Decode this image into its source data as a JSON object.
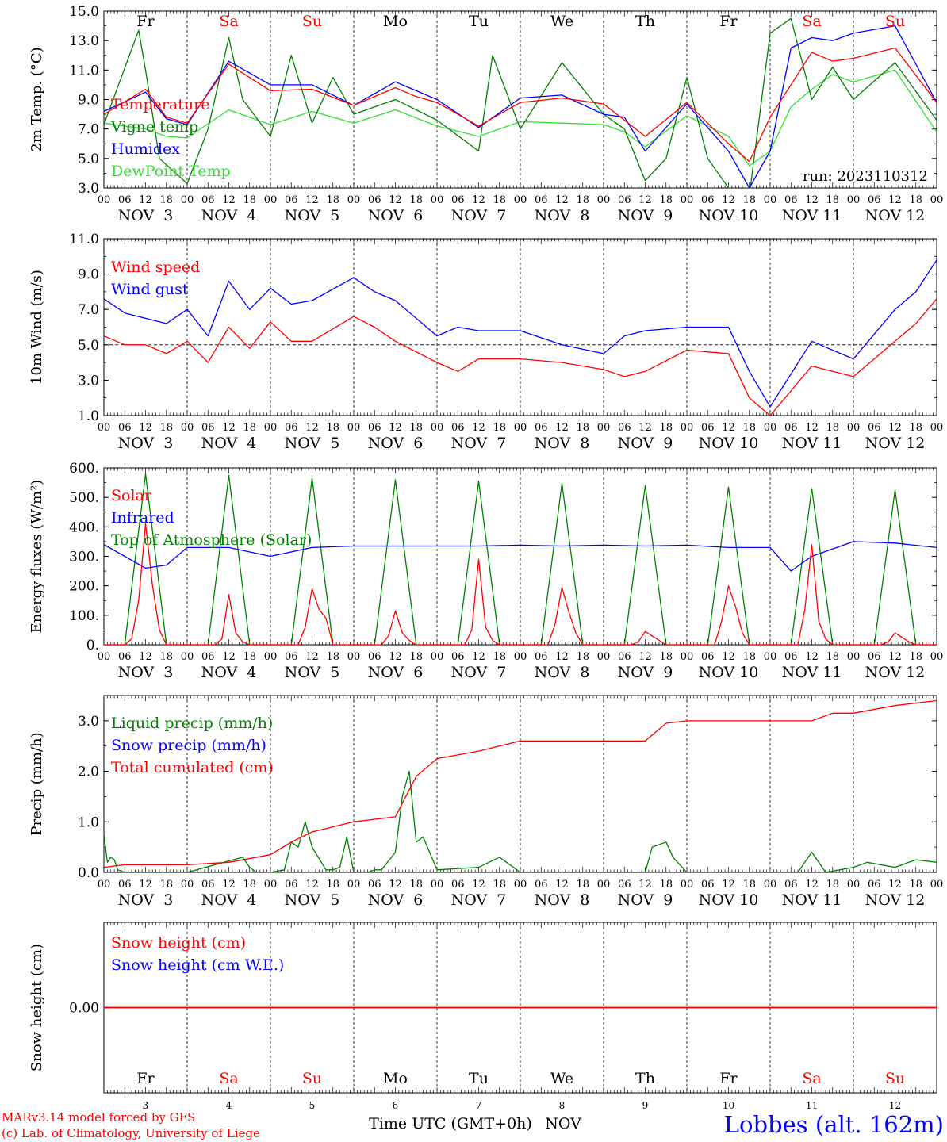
{
  "colors": {
    "temperature": "#ff0000",
    "vigne": "#008000",
    "humidex": "#0000ff",
    "dewpoint": "#33dd33",
    "wind_speed": "#ff0000",
    "wind_gust": "#0000ff",
    "solar": "#ff0000",
    "infrared": "#0000ff",
    "toa": "#008000",
    "liquid": "#008000",
    "snow": "#0000ff",
    "cumulated": "#ff0000",
    "snow_height": "#ff0000",
    "snow_we": "#0000ff",
    "weekend": "#ff0000",
    "weekday": "#000000",
    "station": "#0000ff"
  },
  "timeline": {
    "hour_ticks": [
      "00",
      "06",
      "12",
      "18"
    ],
    "dates": [
      "NOV  3",
      "NOV  4",
      "NOV  5",
      "NOV  6",
      "NOV  7",
      "NOV  8",
      "NOV  9",
      "NOV 10",
      "NOV 11",
      "NOV 12"
    ],
    "day_abbr": [
      "Fr",
      "Sa",
      "Su",
      "Mo",
      "Tu",
      "We",
      "Th",
      "Fr",
      "Sa",
      "Su"
    ],
    "weekend": [
      false,
      true,
      true,
      false,
      false,
      false,
      false,
      false,
      true,
      true
    ],
    "day_numbers": [
      "3",
      "4",
      "5",
      "6",
      "7",
      "8",
      "9",
      "10",
      "11",
      "12"
    ]
  },
  "footer": {
    "model": "MARv3.14 model forced by GFS",
    "lab": "(c) Lab. of Climatology, University of Liege",
    "xlabel": "Time UTC (GMT+0h)",
    "month": "NOV",
    "station": "Lobbes (alt. 162m)"
  },
  "chart_data": [
    {
      "type": "line",
      "ylabel": "2m Temp. (°C)",
      "ylim": [
        3,
        15
      ],
      "yticks": [
        "15.0",
        "13.0",
        "11.0",
        "9.0",
        "7.0",
        "5.0",
        "3.0"
      ],
      "annotation": "run: 2023110312",
      "x_unit": "hours since NOV 3 00 UTC",
      "series": [
        {
          "name": "Temperature",
          "x": [
            0,
            12,
            18,
            24,
            36,
            48,
            60,
            72,
            84,
            90,
            96,
            108,
            120,
            132,
            144,
            150,
            156,
            168,
            180,
            186,
            192,
            204,
            210,
            216,
            228,
            240
          ],
          "y": [
            8.0,
            9.7,
            7.8,
            7.4,
            11.4,
            9.6,
            9.7,
            8.6,
            9.8,
            9.2,
            8.8,
            7.2,
            8.8,
            9.1,
            8.7,
            7.6,
            6.5,
            8.8,
            6.0,
            4.8,
            7.8,
            12.2,
            11.6,
            11.8,
            12.5,
            8.8
          ]
        },
        {
          "name": "Vigne temp",
          "x": [
            0,
            10,
            12,
            16,
            24,
            30,
            36,
            40,
            48,
            54,
            60,
            66,
            72,
            84,
            96,
            108,
            112,
            120,
            132,
            144,
            150,
            156,
            162,
            168,
            174,
            180,
            186,
            192,
            198,
            204,
            210,
            216,
            228,
            240
          ],
          "y": [
            7.3,
            13.7,
            11.0,
            5.0,
            3.3,
            7.0,
            13.2,
            9.0,
            6.5,
            12.0,
            7.4,
            10.5,
            8.0,
            9.0,
            7.6,
            5.5,
            12.0,
            7.0,
            11.5,
            8.0,
            7.0,
            3.5,
            5.0,
            10.5,
            5.0,
            3.0,
            2.5,
            13.5,
            14.5,
            9.0,
            11.2,
            9.0,
            11.5,
            7.6
          ]
        },
        {
          "name": "Humidex",
          "x": [
            0,
            12,
            18,
            24,
            36,
            48,
            60,
            72,
            84,
            96,
            108,
            120,
            132,
            144,
            150,
            156,
            168,
            180,
            186,
            192,
            198,
            204,
            210,
            216,
            228,
            240
          ],
          "y": [
            8.2,
            9.5,
            7.7,
            7.3,
            11.6,
            10.0,
            10.0,
            8.6,
            10.2,
            9.0,
            7.1,
            9.1,
            9.3,
            8.0,
            7.8,
            5.5,
            8.7,
            5.5,
            3.0,
            5.5,
            12.5,
            13.2,
            13.0,
            13.5,
            14.0,
            8.8
          ]
        },
        {
          "name": "DewPoint Temp",
          "x": [
            0,
            12,
            18,
            24,
            36,
            48,
            60,
            72,
            84,
            96,
            108,
            120,
            132,
            144,
            150,
            156,
            168,
            180,
            186,
            192,
            198,
            204,
            210,
            216,
            228,
            240
          ],
          "y": [
            7.4,
            7.0,
            6.5,
            6.4,
            8.3,
            7.3,
            8.2,
            7.4,
            8.3,
            7.2,
            6.5,
            7.5,
            7.4,
            7.3,
            6.8,
            5.8,
            7.9,
            6.5,
            4.5,
            5.5,
            8.5,
            9.7,
            10.7,
            10.2,
            11.0,
            6.8
          ]
        }
      ]
    },
    {
      "type": "line",
      "ylabel": "10m Wind (m/s)",
      "ylim": [
        1,
        11
      ],
      "yticks": [
        "11.0",
        "9.0",
        "7.0",
        "5.0",
        "3.0",
        "1.0"
      ],
      "reference_line": 5.0,
      "x_unit": "hours since NOV 3 00 UTC",
      "series": [
        {
          "name": "Wind speed",
          "x": [
            0,
            6,
            12,
            18,
            24,
            30,
            36,
            42,
            48,
            54,
            60,
            72,
            78,
            84,
            96,
            102,
            108,
            120,
            132,
            144,
            150,
            156,
            168,
            180,
            186,
            192,
            204,
            216,
            228,
            234,
            240
          ],
          "y": [
            5.5,
            5.0,
            5.0,
            4.5,
            5.2,
            4.0,
            6.0,
            4.8,
            6.3,
            5.2,
            5.2,
            6.6,
            6.0,
            5.2,
            4.0,
            3.5,
            4.2,
            4.2,
            4.0,
            3.6,
            3.2,
            3.5,
            4.7,
            4.5,
            2.0,
            1.0,
            3.8,
            3.2,
            5.2,
            6.2,
            7.6
          ]
        },
        {
          "name": "Wind gust",
          "x": [
            0,
            6,
            12,
            18,
            24,
            30,
            36,
            42,
            48,
            54,
            60,
            72,
            78,
            84,
            96,
            102,
            108,
            120,
            132,
            144,
            150,
            156,
            168,
            180,
            186,
            192,
            204,
            216,
            228,
            234,
            240
          ],
          "y": [
            7.6,
            6.8,
            6.5,
            6.2,
            7.0,
            5.5,
            8.6,
            7.0,
            8.2,
            7.3,
            7.5,
            8.8,
            8.0,
            7.5,
            5.5,
            6.0,
            5.8,
            5.8,
            5.0,
            4.5,
            5.5,
            5.8,
            6.0,
            6.0,
            3.5,
            1.5,
            5.2,
            4.2,
            7.0,
            8.0,
            9.8
          ]
        }
      ]
    },
    {
      "type": "line",
      "ylabel": "Energy fluxes (W/m²)",
      "ylim": [
        0,
        600
      ],
      "yticks": [
        "600.",
        "500.",
        "400.",
        "300.",
        "200.",
        "100.",
        "0."
      ],
      "x_unit": "hours since NOV 3 00 UTC",
      "series": [
        {
          "name": "Solar",
          "x": [
            0,
            6,
            8,
            10,
            12,
            14,
            16,
            18,
            24,
            32,
            34,
            36,
            38,
            40,
            42,
            56,
            58,
            60,
            62,
            64,
            66,
            80,
            82,
            84,
            86,
            88,
            90,
            104,
            106,
            108,
            110,
            112,
            114,
            128,
            130,
            132,
            134,
            136,
            138,
            152,
            154,
            156,
            158,
            160,
            162,
            176,
            178,
            180,
            182,
            184,
            186,
            200,
            202,
            204,
            206,
            208,
            210,
            224,
            226,
            228,
            230,
            232,
            234,
            240
          ],
          "y": [
            0,
            0,
            20,
            150,
            410,
            200,
            50,
            0,
            0,
            0,
            20,
            170,
            40,
            10,
            0,
            0,
            60,
            190,
            120,
            90,
            0,
            0,
            30,
            115,
            40,
            15,
            0,
            0,
            50,
            290,
            60,
            15,
            0,
            0,
            70,
            195,
            110,
            40,
            0,
            0,
            10,
            45,
            30,
            15,
            0,
            0,
            80,
            200,
            130,
            40,
            0,
            0,
            120,
            340,
            80,
            20,
            0,
            0,
            10,
            40,
            25,
            10,
            0,
            0
          ]
        },
        {
          "name": "Infrared",
          "x": [
            0,
            12,
            18,
            24,
            36,
            48,
            60,
            72,
            84,
            96,
            108,
            120,
            132,
            144,
            156,
            168,
            180,
            192,
            198,
            204,
            216,
            228,
            240
          ],
          "y": [
            340,
            260,
            270,
            330,
            330,
            300,
            330,
            335,
            335,
            335,
            335,
            338,
            335,
            338,
            335,
            338,
            330,
            330,
            250,
            300,
            350,
            345,
            330
          ]
        },
        {
          "name": "Top of Atmosphere (Solar)",
          "x": [
            0,
            6,
            12,
            18,
            24,
            30,
            36,
            42,
            48,
            54,
            60,
            66,
            72,
            78,
            84,
            90,
            96,
            102,
            108,
            114,
            120,
            126,
            132,
            138,
            144,
            150,
            156,
            162,
            168,
            174,
            180,
            186,
            192,
            198,
            204,
            210,
            216,
            222,
            228,
            234,
            240
          ],
          "y": [
            0,
            0,
            580,
            0,
            0,
            0,
            575,
            0,
            0,
            0,
            565,
            0,
            0,
            0,
            560,
            0,
            0,
            0,
            555,
            0,
            0,
            0,
            548,
            0,
            0,
            0,
            540,
            0,
            0,
            0,
            535,
            0,
            0,
            0,
            530,
            0,
            0,
            0,
            525,
            0,
            0
          ]
        }
      ]
    },
    {
      "type": "line",
      "ylabel": "Precip (mm/h)",
      "ylim": [
        0,
        3.5
      ],
      "yticks": [
        "3.0",
        "2.0",
        "1.0",
        "0.0"
      ],
      "x_unit": "hours since NOV 3 00 UTC",
      "series": [
        {
          "name": "Liquid precip (mm/h)",
          "x": [
            0,
            1,
            2,
            3,
            4,
            6,
            24,
            40,
            42,
            44,
            48,
            52,
            54,
            56,
            58,
            60,
            64,
            66,
            68,
            70,
            72,
            76,
            78,
            80,
            84,
            86,
            88,
            90,
            92,
            96,
            108,
            114,
            120,
            156,
            158,
            162,
            164,
            168,
            200,
            204,
            208,
            216,
            220,
            228,
            234,
            240
          ],
          "y": [
            0.75,
            0.2,
            0.3,
            0.25,
            0.05,
            0,
            0,
            0.3,
            0.1,
            0,
            0,
            0.05,
            0.6,
            0.5,
            1.0,
            0.5,
            0.05,
            0.05,
            0.1,
            0.7,
            0,
            0,
            0.05,
            0.05,
            0.4,
            1.5,
            2.0,
            0.6,
            0.7,
            0.05,
            0.1,
            0.3,
            0,
            0,
            0.5,
            0.6,
            0.3,
            0,
            0,
            0.4,
            0,
            0.1,
            0.2,
            0.1,
            0.25,
            0.2
          ]
        },
        {
          "name": "Snow precip (mm/h)",
          "x": [
            0,
            240
          ],
          "y": [
            0,
            0
          ]
        },
        {
          "name": "Total cumulated (cm)",
          "x": [
            0,
            6,
            24,
            36,
            48,
            54,
            60,
            72,
            84,
            90,
            96,
            108,
            120,
            132,
            156,
            162,
            168,
            204,
            210,
            216,
            228,
            240
          ],
          "y": [
            0.1,
            0.15,
            0.15,
            0.2,
            0.35,
            0.6,
            0.8,
            1.0,
            1.1,
            1.9,
            2.25,
            2.4,
            2.6,
            2.6,
            2.6,
            2.95,
            3.0,
            3.0,
            3.15,
            3.15,
            3.3,
            3.4
          ]
        }
      ]
    },
    {
      "type": "line",
      "ylabel": "Snow height (cm)",
      "ylim": [
        -1,
        1
      ],
      "yticks": [
        "0.00"
      ],
      "x_unit": "hours since NOV 3 00 UTC",
      "series": [
        {
          "name": "Snow height (cm)",
          "x": [
            0,
            240
          ],
          "y": [
            0,
            0
          ]
        },
        {
          "name": "Snow height (cm W.E.)",
          "x": [
            0,
            240
          ],
          "y": [
            0,
            0
          ]
        }
      ]
    }
  ]
}
